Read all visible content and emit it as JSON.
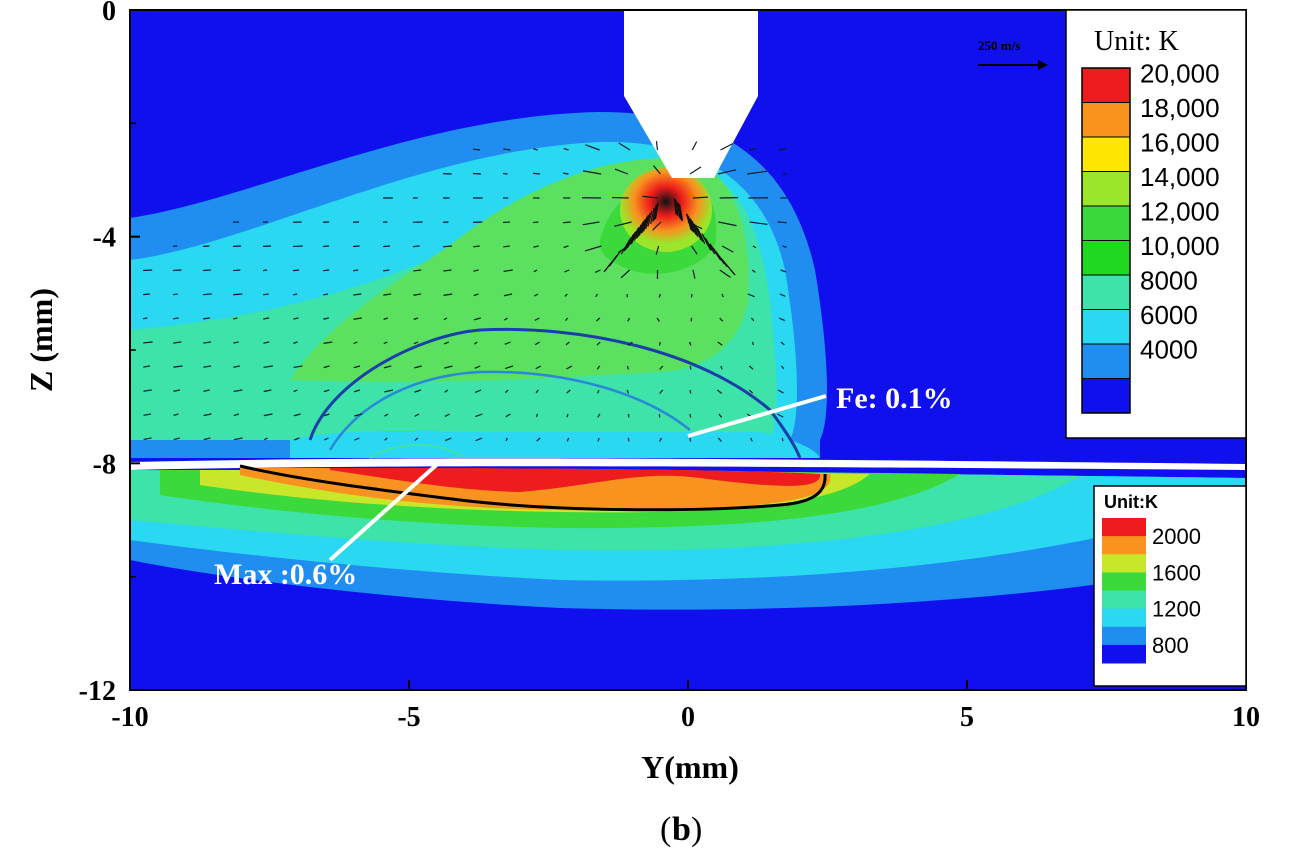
{
  "chart_data": {
    "type": "heatmap",
    "title": "",
    "xlabel": "Y(mm)",
    "ylabel": "Z (mm)",
    "xlim": [
      -10,
      10
    ],
    "ylim": [
      -12,
      0
    ],
    "x_ticks": [
      "-10",
      "-5",
      "0",
      "5",
      "10"
    ],
    "y_ticks": [
      "0",
      "-4",
      "-8",
      "-12"
    ],
    "grid": false,
    "arc_legend": {
      "title": "Unit: K",
      "placement": "top-right",
      "levels": [
        "20,000",
        "18,000",
        "16,000",
        "14,000",
        "12,000",
        "10,000",
        "8000",
        "6000",
        "4000"
      ],
      "colors": [
        "#ee1c1c",
        "#f7931e",
        "#ffe600",
        "#9be52a",
        "#3cd93c",
        "#20d820",
        "#3de3a8",
        "#2ad8f2",
        "#1f8ef0",
        "#1010ee"
      ]
    },
    "pool_legend": {
      "title": "Unit:K",
      "placement": "bottom-right",
      "levels": [
        "2000",
        "1600",
        "1200",
        "800"
      ],
      "colors": [
        "#ee1c1c",
        "#f7931e",
        "#c8e62a",
        "#3cd93c",
        "#3de3a8",
        "#2ad8f2",
        "#1f8ef0",
        "#1010ee"
      ]
    },
    "velocity_scale": {
      "label": "250 m/s"
    },
    "annotations": [
      {
        "text": "Fe: 0.1%",
        "y": -0.2,
        "z": -7.6
      },
      {
        "text": "Max :0.6%",
        "y": -4.5,
        "z": -8.0
      }
    ],
    "panel_label": "b",
    "colors": {
      "background_field": "#1010ee",
      "outer_arc": "#1f8ef0",
      "mid_arc": "#2ad8f2",
      "inner_arc": "#3de3a8",
      "core_arc": "#5ce060",
      "pool_hot": "#f7931e",
      "pool_max": "#ee1c1c"
    }
  }
}
